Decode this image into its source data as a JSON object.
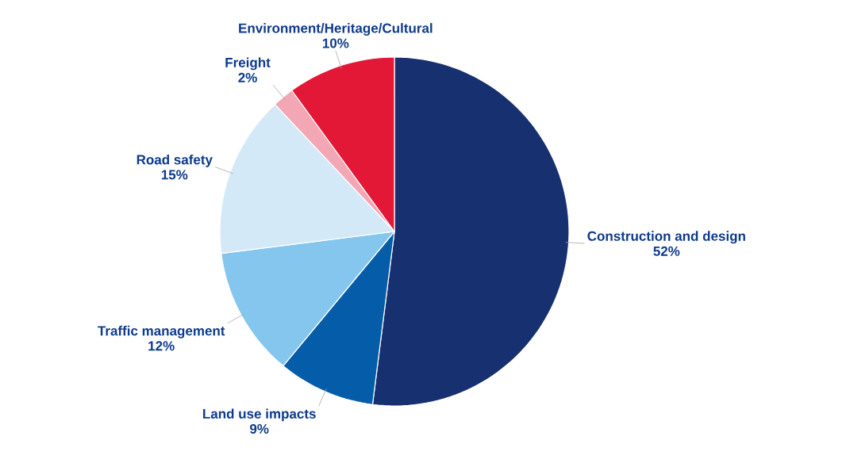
{
  "chart_data": {
    "type": "pie",
    "categories": [
      "Construction and design",
      "Land use impacts",
      "Traffic management",
      "Road safety",
      "Freight",
      "Environment/Heritage/Cultural"
    ],
    "values": [
      52,
      9,
      12,
      15,
      2,
      10
    ],
    "value_labels": [
      "52%",
      "9%",
      "12%",
      "15%",
      "2%",
      "10%"
    ],
    "colors": [
      "#17306f",
      "#055ca8",
      "#84c6ee",
      "#d4e9f7",
      "#f3a7b5",
      "#e31837"
    ]
  }
}
